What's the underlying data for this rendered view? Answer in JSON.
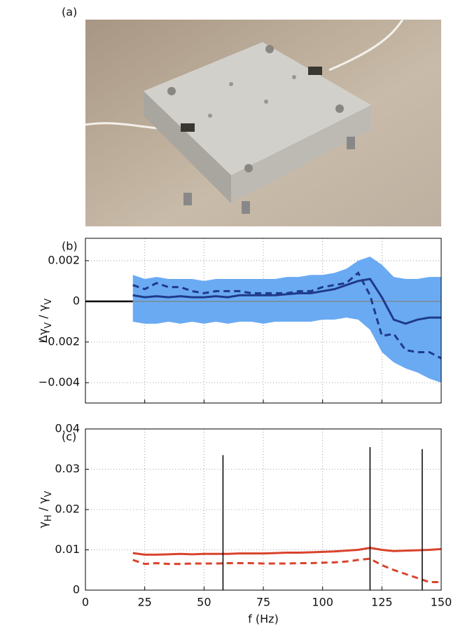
{
  "photo_label": "(a)",
  "chart_data": [
    {
      "type": "line",
      "label": "(b)",
      "ylabel": [
        {
          "text": "Δγ"
        },
        {
          "text": "V",
          "sub": true
        },
        {
          "text": " / γ"
        },
        {
          "text": "V",
          "sub": true
        }
      ],
      "x": [
        20,
        25,
        30,
        35,
        40,
        45,
        50,
        55,
        60,
        65,
        70,
        75,
        80,
        85,
        90,
        95,
        100,
        105,
        110,
        115,
        120,
        125,
        130,
        135,
        140,
        145,
        150
      ],
      "xlim": [
        0,
        150
      ],
      "xticks": [
        0,
        25,
        50,
        75,
        100,
        125,
        150
      ],
      "show_xtick_labels": false,
      "ylim": [
        -0.005,
        0.0031
      ],
      "yticks": [
        {
          "value": -0.004,
          "label": "−0.004"
        },
        {
          "value": -0.002,
          "label": "−0.002"
        },
        0,
        0.002
      ],
      "grid": true,
      "hline": 0,
      "band": {
        "color": "#6aaaf2",
        "upper": [
          0.0013,
          0.0011,
          0.0012,
          0.0011,
          0.0011,
          0.0011,
          0.001,
          0.0011,
          0.0011,
          0.0011,
          0.0011,
          0.0011,
          0.0011,
          0.0012,
          0.0012,
          0.0013,
          0.0013,
          0.0014,
          0.0016,
          0.002,
          0.0022,
          0.0018,
          0.0012,
          0.0011,
          0.0011,
          0.0012,
          0.0012
        ],
        "lower": [
          -0.001,
          -0.0011,
          -0.0011,
          -0.001,
          -0.0011,
          -0.001,
          -0.0011,
          -0.001,
          -0.0011,
          -0.001,
          -0.001,
          -0.0011,
          -0.001,
          -0.001,
          -0.001,
          -0.001,
          -0.0009,
          -0.0009,
          -0.0008,
          -0.0009,
          -0.0014,
          -0.0025,
          -0.003,
          -0.0033,
          -0.0035,
          -0.0038,
          -0.004
        ]
      },
      "series": [
        {
          "color": "#1f3a8a",
          "dashed": false,
          "values": [
            0.0003,
            0.0002,
            0.00025,
            0.0002,
            0.00025,
            0.0002,
            0.0002,
            0.00025,
            0.0002,
            0.0003,
            0.0003,
            0.0003,
            0.0003,
            0.00035,
            0.0004,
            0.0004,
            0.0005,
            0.0006,
            0.0008,
            0.001,
            0.0011,
            0.0002,
            -0.0009,
            -0.0011,
            -0.0009,
            -0.0008,
            -0.0008
          ]
        },
        {
          "color": "#1f3a8a",
          "dashed": true,
          "values": [
            0.0008,
            0.0006,
            0.0009,
            0.0007,
            0.0007,
            0.0005,
            0.0004,
            0.0005,
            0.0005,
            0.0005,
            0.0004,
            0.0004,
            0.0004,
            0.0004,
            0.0005,
            0.0005,
            0.0007,
            0.0008,
            0.0009,
            0.0014,
            0.0003,
            -0.0017,
            -0.0016,
            -0.0024,
            -0.0025,
            -0.0025,
            -0.0028
          ]
        }
      ]
    },
    {
      "type": "line",
      "label": "(c)",
      "ylabel": [
        {
          "text": "γ"
        },
        {
          "text": "H",
          "sub": true
        },
        {
          "text": " / γ"
        },
        {
          "text": "V",
          "sub": true
        }
      ],
      "xlabel": "f (Hz)",
      "x": [
        20,
        25,
        30,
        35,
        40,
        45,
        50,
        55,
        60,
        65,
        70,
        75,
        80,
        85,
        90,
        95,
        100,
        105,
        110,
        115,
        120,
        125,
        130,
        135,
        140,
        145,
        150
      ],
      "xlim": [
        0,
        150
      ],
      "xticks": [
        0,
        25,
        50,
        75,
        100,
        125,
        150
      ],
      "show_xtick_labels": true,
      "ylim": [
        0,
        0.04
      ],
      "yticks": [
        0,
        0.01,
        0.02,
        0.03,
        0.04
      ],
      "grid": true,
      "series": [
        {
          "color": "#d9432c",
          "dashed": false,
          "values": [
            0.0092,
            0.0088,
            0.0088,
            0.0089,
            0.009,
            0.0089,
            0.009,
            0.009,
            0.009,
            0.0091,
            0.0091,
            0.0091,
            0.0092,
            0.0093,
            0.0093,
            0.0094,
            0.0095,
            0.0096,
            0.0098,
            0.01,
            0.0105,
            0.01,
            0.0097,
            0.0098,
            0.0099,
            0.01,
            0.0102
          ]
        },
        {
          "color": "#d9432c",
          "dashed": true,
          "values": [
            0.0075,
            0.0065,
            0.0067,
            0.0065,
            0.0065,
            0.0066,
            0.0066,
            0.0066,
            0.0067,
            0.0067,
            0.0067,
            0.0066,
            0.0066,
            0.0066,
            0.0067,
            0.0067,
            0.0068,
            0.0069,
            0.0071,
            0.0075,
            0.0078,
            0.0062,
            0.005,
            0.004,
            0.003,
            0.002,
            0.002
          ]
        }
      ],
      "stems": {
        "color": "#000000",
        "x": [
          58,
          120,
          142
        ],
        "values": [
          0.0335,
          0.0355,
          0.035
        ]
      }
    }
  ]
}
